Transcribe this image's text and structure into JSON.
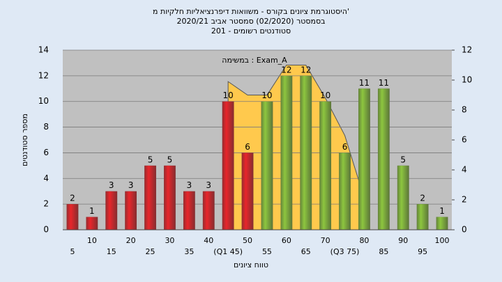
{
  "chart_data": {
    "type": "bar",
    "title": [
      "היסטוגרמת ציונים בקורס - משוואות דיפרנציאליות חלקיות מ'",
      "בסמסטר (02/2020) סמסטר אביב 2020/21",
      "סטודנטים רשומים - 201"
    ],
    "annotation": "במשימה : Exam_A",
    "xlabel": "טווח ציונים",
    "ylabel": "מספר סטודנטים",
    "categories": [
      "5",
      "10",
      "15",
      "20",
      "25",
      "30",
      "35",
      "40",
      "(Q1 45)",
      "50",
      "55",
      "60",
      "65",
      "70",
      "(Q3 75)",
      "80",
      "85",
      "90",
      "95",
      "100"
    ],
    "values": [
      2,
      1,
      3,
      3,
      5,
      5,
      3,
      3,
      10,
      6,
      10,
      12,
      12,
      10,
      6,
      11,
      11,
      5,
      2,
      1
    ],
    "colors": [
      "#e8262b",
      "#e8262b",
      "#e8262b",
      "#e8262b",
      "#e8262b",
      "#e8262b",
      "#e8262b",
      "#e8262b",
      "#e8262b",
      "#e8262b",
      "#8dc63f",
      "#8dc63f",
      "#8dc63f",
      "#8dc63f",
      "#8dc63f",
      "#8dc63f",
      "#8dc63f",
      "#8dc63f",
      "#8dc63f",
      "#8dc63f"
    ],
    "area": {
      "color": "#ffc94d",
      "axis": "y2",
      "values": [
        null,
        null,
        null,
        null,
        null,
        null,
        null,
        null,
        9.9,
        9.0,
        9.0,
        11.0,
        11.0,
        8.8,
        6.3,
        2.1,
        null,
        null,
        null,
        null
      ]
    },
    "ylim": [
      0,
      14
    ],
    "yticks": [
      0,
      2,
      4,
      6,
      8,
      10,
      12,
      14
    ],
    "y2lim": [
      0,
      12
    ],
    "y2ticks": [
      0,
      2,
      4,
      6,
      8,
      10,
      12
    ],
    "grid": true
  }
}
